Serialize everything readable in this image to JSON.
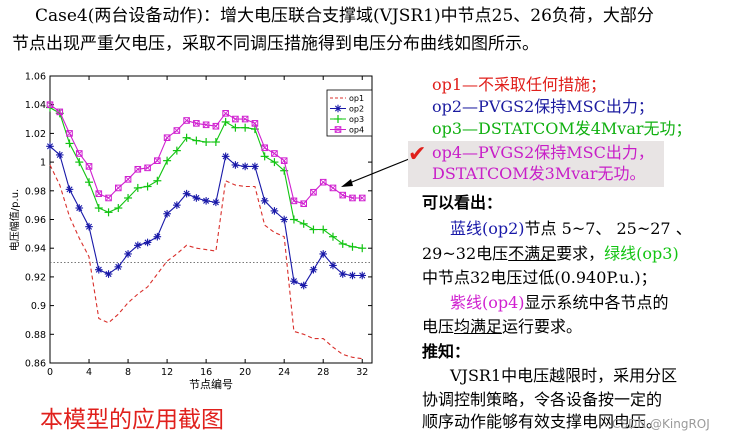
{
  "intro": {
    "line1": "Case4(两台设备动作)：增大电压联合支撑域(VJSR1)中节点25、26负荷，大部分",
    "line2": "节点出现严重欠电压，采取不同调压措施得到电压分布曲线如图所示。"
  },
  "notes": {
    "op1": "op1—不采取任何措施；",
    "op2": "op2—PVGS2保持MSC出力；",
    "op3": "op3—DSTATCOM发4Mvar无功；",
    "op4_line1": "op4—PVGS2保持MSC出力，",
    "op4_line2": "DSTATCOM发3Mvar无功。",
    "checkmark": "✔"
  },
  "analysis": {
    "heading": "可以看出：",
    "p1_a": "蓝线(op2)",
    "p1_b": "节点 5~7、 25~27 、",
    "p1_c": "29~32电压",
    "p1_d": "不满足",
    "p1_e": "要求，",
    "p1_f": "绿线(op3)",
    "p1_g": "中节点32电压过低(0.940P.u.)；",
    "p2_a": "紫线(op4)",
    "p2_b": "显示系统中各节点的",
    "p2_c": "电压",
    "p2_d": "均满足",
    "p2_e": "运行要求。",
    "infer_heading": "推知：",
    "p3_1": "VJSR1中电压越限时，采用分区",
    "p3_2": "协调控制策略，令各设备按一定的",
    "p3_3": "顺序动作能够有效支撑电网电压。"
  },
  "caption": "本模型的应用截图",
  "watermark": "CSDN @KingROJ",
  "colors": {
    "op1": "#d9302c",
    "op2": "#1818a8",
    "op3": "#12c412",
    "op4": "#d020d0",
    "note_op1": "#e0201c",
    "note_op2": "#1c1ca0",
    "note_op3": "#10b010",
    "note_op4": "#c81ec8",
    "caption": "#e0201c"
  },
  "chart_data": {
    "type": "line",
    "xlabel": "节点编号",
    "ylabel": "电压幅值/p.u.",
    "xlim": [
      0,
      33
    ],
    "ylim": [
      0.86,
      1.06
    ],
    "xticks": [
      0,
      4,
      8,
      12,
      16,
      20,
      24,
      28,
      32
    ],
    "yticks": [
      0.86,
      0.88,
      0.9,
      0.92,
      0.94,
      0.96,
      0.98,
      1.0,
      1.02,
      1.04,
      1.06
    ],
    "ytick_labels": [
      "0.86",
      "0.88",
      "0.9",
      "0.92",
      "0.94",
      "0.96",
      "0.98",
      "1",
      "1.02",
      "1.04",
      "1.06"
    ],
    "reference_line": 0.93,
    "legend_position": "top-right",
    "x": [
      0,
      1,
      2,
      3,
      4,
      5,
      6,
      7,
      8,
      9,
      10,
      11,
      12,
      13,
      14,
      15,
      16,
      17,
      18,
      19,
      20,
      21,
      22,
      23,
      24,
      25,
      26,
      27,
      28,
      29,
      30,
      31,
      32
    ],
    "series": [
      {
        "name": "op1",
        "marker": "none",
        "dash": true,
        "values": [
          0.998,
          0.984,
          0.962,
          0.947,
          0.934,
          0.891,
          0.888,
          0.894,
          0.902,
          0.908,
          0.913,
          0.922,
          0.931,
          0.936,
          0.942,
          0.94,
          0.939,
          0.938,
          0.987,
          0.984,
          0.983,
          0.983,
          0.956,
          0.951,
          0.948,
          0.882,
          0.88,
          0.877,
          0.877,
          0.871,
          0.866,
          0.864,
          0.863
        ]
      },
      {
        "name": "op2",
        "marker": "asterisk",
        "values": [
          1.011,
          1.005,
          0.981,
          0.968,
          0.955,
          0.925,
          0.922,
          0.927,
          0.936,
          0.942,
          0.944,
          0.948,
          0.964,
          0.97,
          0.978,
          0.975,
          0.973,
          0.972,
          1.004,
          0.998,
          0.997,
          0.997,
          0.973,
          0.966,
          0.96,
          0.917,
          0.914,
          0.925,
          0.936,
          0.928,
          0.922,
          0.921,
          0.921
        ]
      },
      {
        "name": "op3",
        "marker": "plus",
        "values": [
          1.038,
          1.034,
          1.013,
          1.0,
          0.986,
          0.968,
          0.965,
          0.968,
          0.975,
          0.982,
          0.983,
          0.987,
          1.001,
          1.008,
          1.017,
          1.015,
          1.014,
          1.014,
          1.028,
          1.024,
          1.024,
          1.023,
          1.004,
          1.0,
          0.994,
          0.96,
          0.957,
          0.953,
          0.953,
          0.948,
          0.943,
          0.941,
          0.94
        ]
      },
      {
        "name": "op4",
        "marker": "square",
        "values": [
          1.04,
          1.035,
          1.02,
          1.006,
          0.997,
          0.978,
          0.975,
          0.982,
          0.988,
          0.995,
          0.996,
          1.001,
          1.017,
          1.022,
          1.029,
          1.027,
          1.026,
          1.025,
          1.034,
          1.03,
          1.03,
          1.027,
          1.01,
          1.006,
          1.001,
          0.973,
          0.971,
          0.979,
          0.986,
          0.982,
          0.977,
          0.975,
          0.975
        ]
      }
    ]
  }
}
